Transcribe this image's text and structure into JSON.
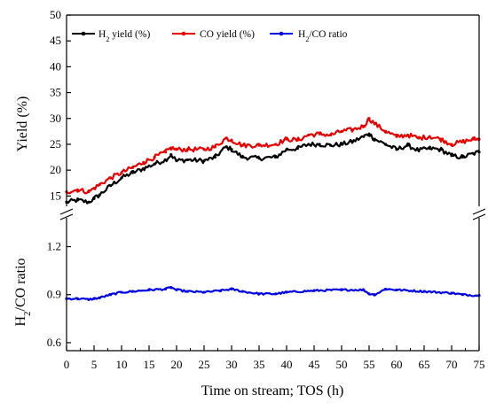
{
  "chart_data": {
    "type": "line",
    "xlabel": "Time on stream; TOS (h)",
    "x_ticks": [
      "0",
      "5",
      "10",
      "15",
      "20",
      "25",
      "30",
      "35",
      "40",
      "45",
      "50",
      "55",
      "60",
      "65",
      "70",
      "75"
    ],
    "xlim": [
      0,
      75
    ],
    "panels": [
      {
        "ylabel": "Yield (%)",
        "ylim": [
          13,
          50
        ],
        "y_ticks": [
          "15",
          "20",
          "25",
          "30",
          "35",
          "40",
          "45",
          "50"
        ],
        "legend_position": "top-left",
        "series": [
          {
            "name": "H2 yield (%)",
            "name_main": "H",
            "name_sub": "2",
            "name_rest": " yield (%)",
            "color": "#000000",
            "x": [
              0,
              2,
              4,
              5,
              6,
              8,
              10,
              12,
              14,
              16,
              18,
              19,
              20,
              22,
              25,
              27,
              29,
              30,
              32,
              35,
              38,
              40,
              42,
              44,
              46,
              48,
              50,
              52,
              54,
              55,
              56,
              58,
              60,
              62,
              64,
              66,
              68,
              70,
              72,
              74,
              75
            ],
            "y": [
              13.8,
              14.2,
              13.8,
              14.5,
              15.2,
              17.0,
              18.5,
              19.5,
              20.3,
              21.2,
              22.0,
              23.0,
              21.8,
              22.0,
              21.8,
              22.5,
              24.5,
              24.0,
              22.5,
              22.3,
              22.5,
              24.0,
              24.2,
              25.0,
              25.0,
              24.8,
              25.0,
              25.5,
              26.5,
              27.0,
              26.0,
              25.0,
              24.0,
              24.8,
              23.8,
              24.2,
              24.0,
              22.8,
              22.5,
              23.2,
              23.5
            ]
          },
          {
            "name": "CO yield (%)",
            "name_main": "CO yield (%)",
            "name_sub": "",
            "name_rest": "",
            "color": "#e60000",
            "x": [
              0,
              2,
              4,
              5,
              6,
              8,
              10,
              12,
              14,
              16,
              18,
              19,
              20,
              22,
              25,
              27,
              29,
              30,
              32,
              35,
              38,
              40,
              42,
              44,
              46,
              48,
              50,
              52,
              54,
              55,
              56,
              58,
              60,
              62,
              64,
              66,
              68,
              70,
              72,
              74,
              75
            ],
            "y": [
              15.8,
              16.2,
              15.8,
              16.5,
              17.2,
              18.5,
              19.5,
              20.5,
              21.5,
              22.5,
              23.5,
              24.3,
              24.0,
              24.0,
              24.0,
              24.5,
              26.2,
              25.8,
              24.8,
              24.8,
              25.0,
              26.0,
              25.8,
              26.8,
              27.0,
              26.8,
              27.5,
              27.8,
              28.5,
              30.0,
              29.0,
              27.5,
              26.5,
              26.8,
              26.2,
              26.5,
              26.0,
              25.0,
              25.5,
              26.0,
              26.0
            ]
          }
        ]
      },
      {
        "ylabel": "H2/CO ratio",
        "ylabel_main": "H",
        "ylabel_sub": "2",
        "ylabel_rest": "/CO ratio",
        "ylim": [
          0.55,
          1.38
        ],
        "y_ticks": [
          "0.6",
          "0.9",
          "1.2"
        ],
        "series": [
          {
            "name": "H2/CO ratio",
            "name_main": "H",
            "name_sub": "2",
            "name_rest": "/CO ratio",
            "color": "#0000e6",
            "x": [
              0,
              2,
              4,
              5,
              6,
              8,
              10,
              12,
              15,
              18,
              19,
              20,
              22,
              25,
              28,
              30,
              32,
              35,
              38,
              40,
              45,
              50,
              54,
              55,
              56,
              58,
              60,
              65,
              70,
              72,
              75
            ],
            "y": [
              0.875,
              0.875,
              0.87,
              0.875,
              0.88,
              0.9,
              0.915,
              0.92,
              0.93,
              0.935,
              0.945,
              0.93,
              0.92,
              0.915,
              0.925,
              0.935,
              0.92,
              0.905,
              0.905,
              0.915,
              0.925,
              0.93,
              0.93,
              0.905,
              0.9,
              0.935,
              0.93,
              0.92,
              0.91,
              0.9,
              0.895
            ]
          }
        ]
      }
    ]
  }
}
